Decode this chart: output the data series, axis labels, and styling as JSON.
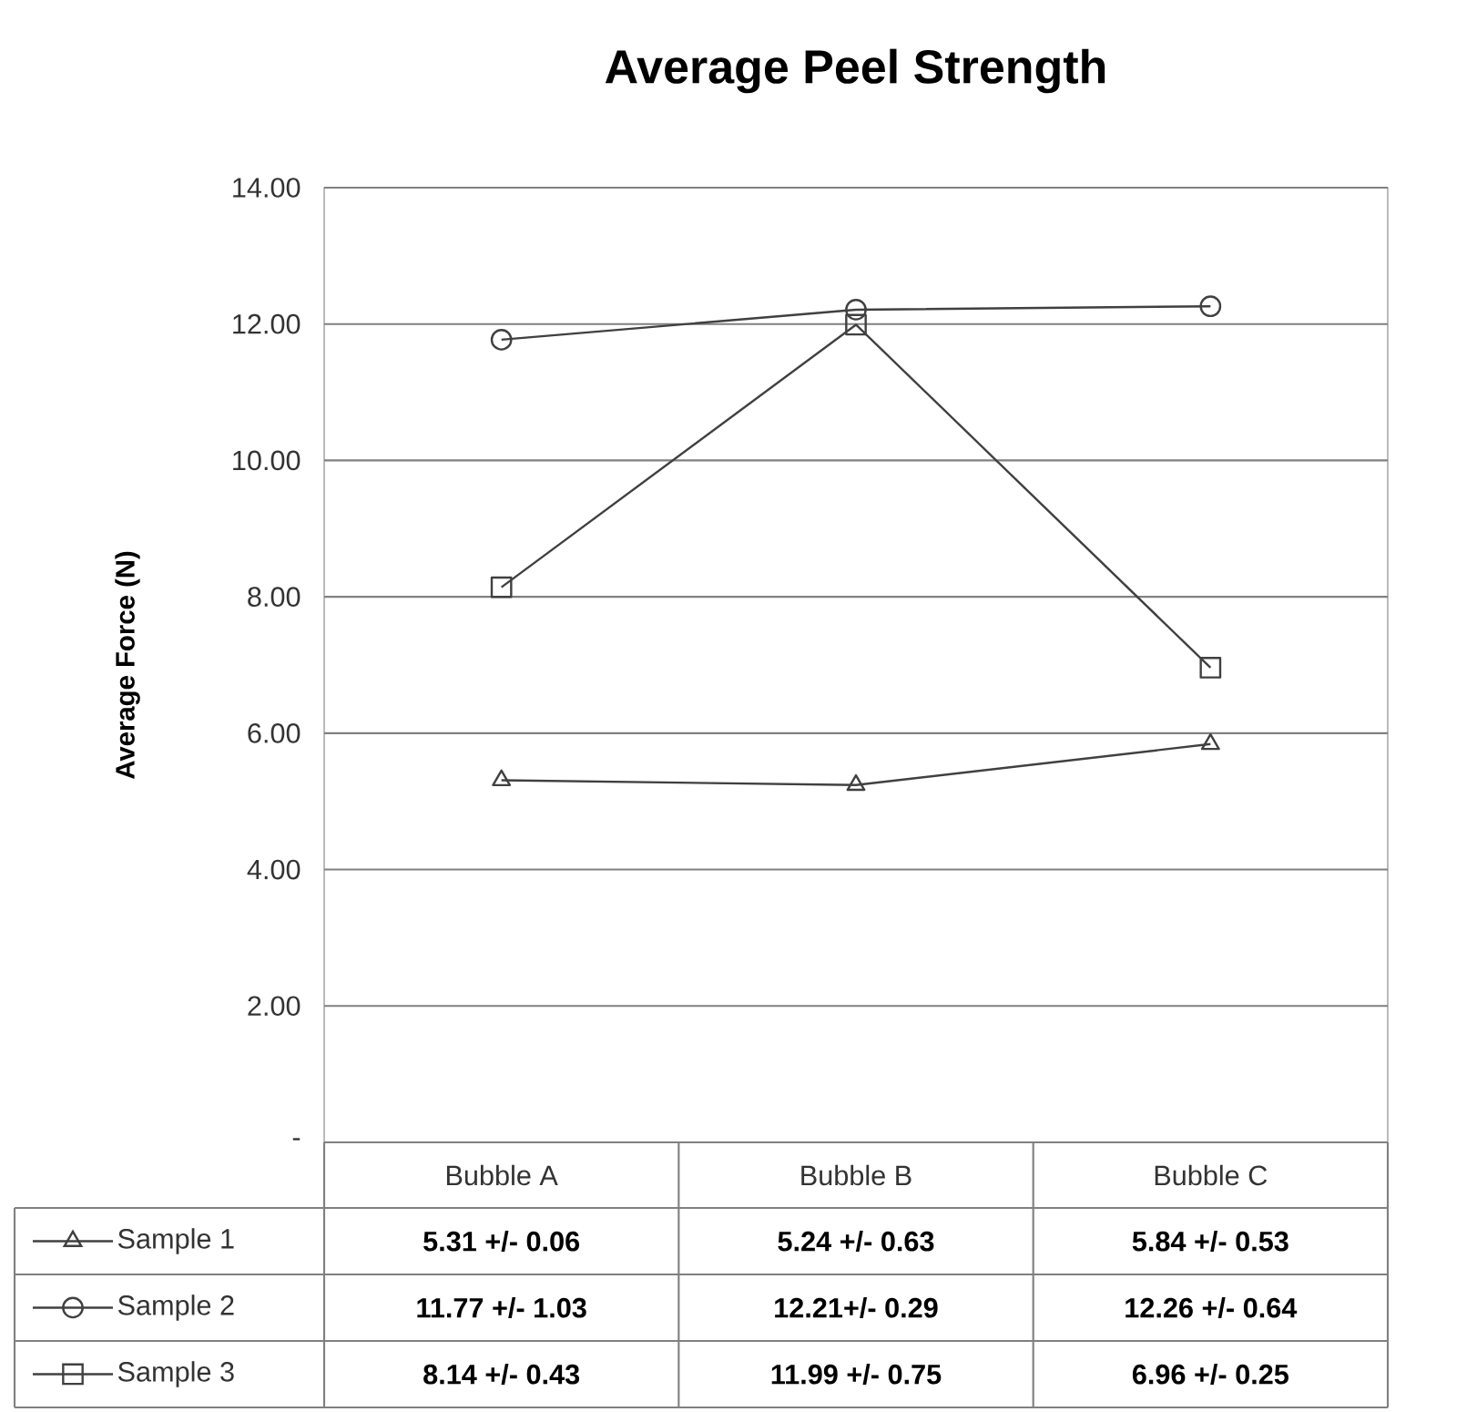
{
  "chart_data": {
    "type": "line",
    "title": "Average Peel Strength",
    "ylabel": "Average Force (N)",
    "categories": [
      "Bubble A",
      "Bubble B",
      "Bubble C"
    ],
    "series": [
      {
        "name": "Sample 1",
        "color": "#404040",
        "marker": "triangle",
        "values": [
          5.31,
          5.24,
          5.84
        ],
        "value_labels": [
          "5.31 +/- 0.06",
          "5.24 +/- 0.63",
          "5.84 +/- 0.53"
        ]
      },
      {
        "name": "Sample 2",
        "color": "#404040",
        "marker": "circle",
        "values": [
          11.77,
          12.21,
          12.26
        ],
        "value_labels": [
          "11.77 +/- 1.03",
          "12.21+/- 0.29",
          "12.26 +/- 0.64"
        ]
      },
      {
        "name": "Sample 3",
        "color": "#404040",
        "marker": "square",
        "values": [
          8.14,
          11.99,
          6.96
        ],
        "value_labels": [
          "8.14 +/- 0.43",
          "11.99 +/- 0.75",
          "6.96 +/- 0.25"
        ]
      }
    ],
    "ylim": [
      0,
      14
    ],
    "yticks": [
      {
        "value": 0,
        "label": "-"
      },
      {
        "value": 2,
        "label": "2.00"
      },
      {
        "value": 4,
        "label": "4.00"
      },
      {
        "value": 6,
        "label": "6.00"
      },
      {
        "value": 8,
        "label": "8.00"
      },
      {
        "value": 10,
        "label": "10.00"
      },
      {
        "value": 12,
        "label": "12.00"
      },
      {
        "value": 14,
        "label": "14.00"
      }
    ],
    "grid": "y",
    "legend": "bottom left"
  }
}
